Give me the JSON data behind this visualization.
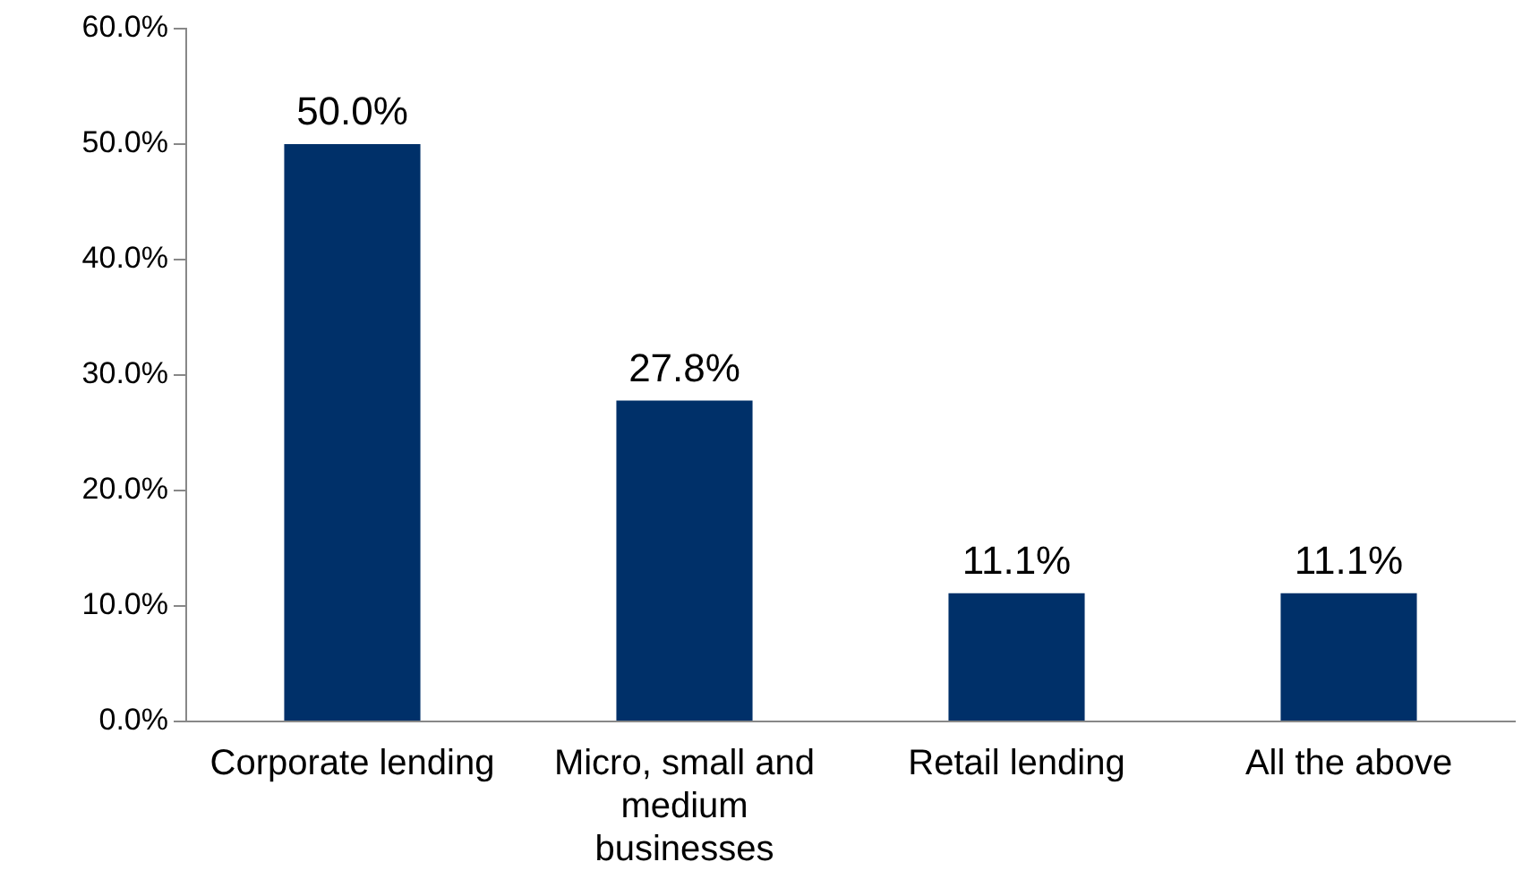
{
  "chart_data": {
    "type": "bar",
    "categories": [
      "Corporate lending",
      "Micro, small and medium businesses",
      "Retail lending",
      "All the above"
    ],
    "values": [
      50.0,
      27.8,
      11.1,
      11.1
    ],
    "value_labels": [
      "50.0%",
      "27.8%",
      "11.1%",
      "11.1%"
    ],
    "color": "#003069",
    "ylim": [
      0,
      60
    ],
    "yticks": [
      {
        "value": 0,
        "label": "0.0%"
      },
      {
        "value": 10,
        "label": "10.0%"
      },
      {
        "value": 20,
        "label": "20.0%"
      },
      {
        "value": 30,
        "label": "30.0%"
      },
      {
        "value": 40,
        "label": "40.0%"
      },
      {
        "value": 50,
        "label": "50.0%"
      },
      {
        "value": 60,
        "label": "60.0%"
      }
    ],
    "grid": false,
    "legend": false
  }
}
